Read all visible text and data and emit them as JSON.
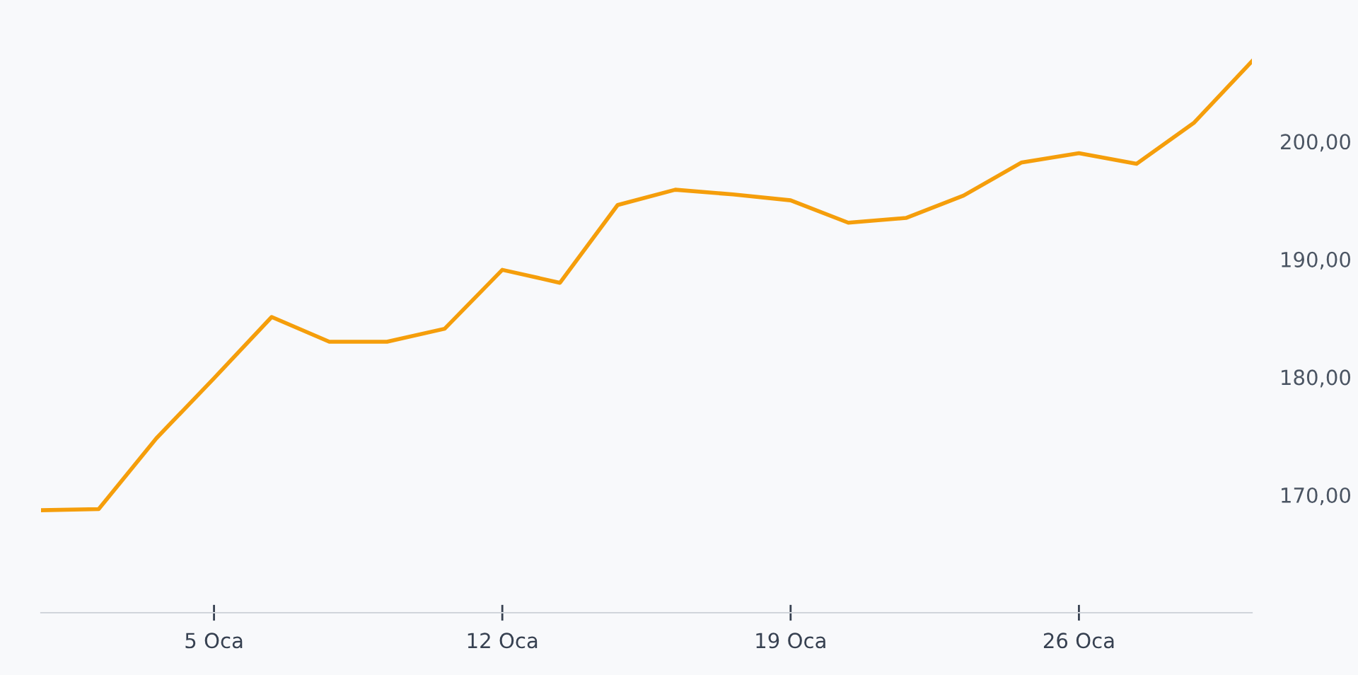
{
  "chart_data": {
    "type": "line",
    "categories": [
      null,
      null,
      null,
      "5 Oca",
      null,
      null,
      null,
      null,
      "12 Oca",
      null,
      null,
      null,
      null,
      "19 Oca",
      null,
      null,
      null,
      null,
      "26 Oca",
      null,
      null,
      null
    ],
    "series": [
      {
        "color": "#f59e0b",
        "values": [
          168.7,
          168.8,
          174.8,
          179.9,
          185.1,
          183.0,
          183.0,
          184.1,
          189.1,
          188.0,
          194.6,
          195.9,
          195.5,
          195.0,
          193.1,
          193.5,
          195.4,
          198.2,
          199.0,
          198.1,
          201.6,
          206.8
        ]
      }
    ],
    "ylim": [
      160,
      212
    ],
    "yticks": [
      {
        "value": 170,
        "label": "170,00"
      },
      {
        "value": 180,
        "label": "180,00"
      },
      {
        "value": 190,
        "label": "190,00"
      },
      {
        "value": 200,
        "label": "200,00"
      }
    ],
    "grid": false,
    "marker": "none",
    "line_style": "solid"
  }
}
